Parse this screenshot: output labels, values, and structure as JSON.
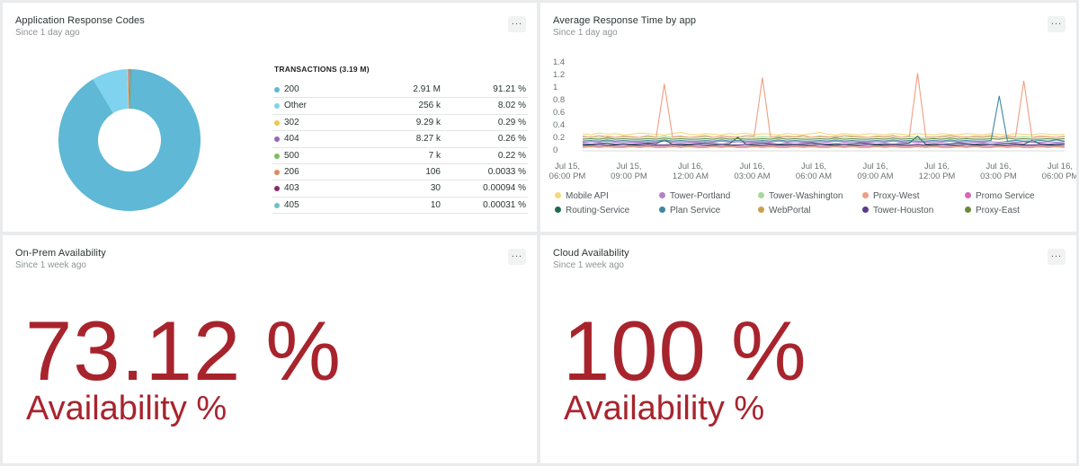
{
  "widgets": {
    "response_codes": {
      "title": "Application Response Codes",
      "subtitle": "Since 1 day ago",
      "menu": "...",
      "table_header": "TRANSACTIONS (3.19 M)",
      "rows": [
        {
          "label": "200",
          "count": "2.91 M",
          "pct": "91.21 %",
          "color": "#5eb8d6"
        },
        {
          "label": "Other",
          "count": "256 k",
          "pct": "8.02 %",
          "color": "#7fd3ee"
        },
        {
          "label": "302",
          "count": "9.29 k",
          "pct": "0.29 %",
          "color": "#f1c64a"
        },
        {
          "label": "404",
          "count": "8.27 k",
          "pct": "0.26 %",
          "color": "#9a66b8"
        },
        {
          "label": "500",
          "count": "7 k",
          "pct": "0.22 %",
          "color": "#7bbf5c"
        },
        {
          "label": "206",
          "count": "106",
          "pct": "0.0033 %",
          "color": "#e08a5c"
        },
        {
          "label": "403",
          "count": "30",
          "pct": "0.00094 %",
          "color": "#8a2a6a"
        },
        {
          "label": "405",
          "count": "10",
          "pct": "0.00031 %",
          "color": "#6cc2c2"
        }
      ]
    },
    "avg_response": {
      "title": "Average Response Time by app",
      "subtitle": "Since 1 day ago",
      "menu": "..."
    },
    "on_prem": {
      "title": "On-Prem Availability",
      "subtitle": "Since 1 week ago",
      "menu": "...",
      "value": "73.12 %",
      "label": "Availability %"
    },
    "cloud": {
      "title": "Cloud Availability",
      "subtitle": "Since 1 week ago",
      "menu": "...",
      "value": "100 %",
      "label": "Availability %"
    }
  },
  "chart_data": [
    {
      "type": "pie",
      "title": "Application Response Codes",
      "categories": [
        "200",
        "Other",
        "302",
        "404",
        "500",
        "206",
        "403",
        "405"
      ],
      "values": [
        91.21,
        8.02,
        0.29,
        0.26,
        0.22,
        0.0033,
        0.00094,
        0.00031
      ],
      "colors": [
        "#5eb8d6",
        "#7fd3ee",
        "#f1c64a",
        "#9a66b8",
        "#7bbf5c",
        "#e08a5c",
        "#8a2a6a",
        "#6cc2c2"
      ]
    },
    {
      "type": "line",
      "title": "Average Response Time by app",
      "ylim": [
        0,
        1.4
      ],
      "y_ticks": [
        "1.4",
        "1.2",
        "1",
        "0.8",
        "0.6",
        "0.4",
        "0.2",
        "0"
      ],
      "x_ticks": [
        {
          "line1": "Jul 15,",
          "line2": "06:00 PM"
        },
        {
          "line1": "Jul 15,",
          "line2": "09:00 PM"
        },
        {
          "line1": "Jul 16,",
          "line2": "12:00 AM"
        },
        {
          "line1": "Jul 16,",
          "line2": "03:00 AM"
        },
        {
          "line1": "Jul 16,",
          "line2": "06:00 AM"
        },
        {
          "line1": "Jul 16,",
          "line2": "09:00 AM"
        },
        {
          "line1": "Jul 16,",
          "line2": "12:00 PM"
        },
        {
          "line1": "Jul 16,",
          "line2": "03:00 PM"
        },
        {
          "line1": "Jul 16,",
          "line2": "06:00 PM"
        }
      ],
      "series": [
        {
          "name": "Mobile API",
          "color": "#f5d87a",
          "values": [
            0.26,
            0.24,
            0.27,
            0.25,
            0.26,
            0.24,
            0.25,
            0.27,
            0.26,
            0.25,
            0.24,
            0.26,
            0.28,
            0.25,
            0.24,
            0.26,
            0.25,
            0.24,
            0.26,
            0.25,
            0.27,
            0.24,
            0.26,
            0.25,
            0.24,
            0.26,
            0.25,
            0.24,
            0.26,
            0.28,
            0.25,
            0.24,
            0.26,
            0.25,
            0.24,
            0.26,
            0.25,
            0.24,
            0.26,
            0.25,
            0.24,
            0.26,
            0.25,
            0.24,
            0.26,
            0.25,
            0.24,
            0.26,
            0.25,
            0.24,
            0.26,
            0.25,
            0.24,
            0.26,
            0.25,
            0.24,
            0.26,
            0.25,
            0.24,
            0.25
          ]
        },
        {
          "name": "Tower-Portland",
          "color": "#b77fcf",
          "values": [
            0.12,
            0.13,
            0.12,
            0.14,
            0.12,
            0.13,
            0.12,
            0.12,
            0.13,
            0.12,
            0.14,
            0.12,
            0.13,
            0.12,
            0.12,
            0.13,
            0.12,
            0.14,
            0.12,
            0.13,
            0.12,
            0.12,
            0.13,
            0.12,
            0.14,
            0.12,
            0.13,
            0.12,
            0.12,
            0.13,
            0.12,
            0.14,
            0.12,
            0.13,
            0.12,
            0.12,
            0.13,
            0.12,
            0.14,
            0.12,
            0.13,
            0.12,
            0.12,
            0.13,
            0.12,
            0.14,
            0.12,
            0.13,
            0.12,
            0.12,
            0.13,
            0.12,
            0.14,
            0.12,
            0.13,
            0.12,
            0.12,
            0.13,
            0.12,
            0.13
          ]
        },
        {
          "name": "Tower-Washington",
          "color": "#a8d99a",
          "values": [
            0.2,
            0.21,
            0.2,
            0.22,
            0.2,
            0.21,
            0.2,
            0.2,
            0.21,
            0.2,
            0.22,
            0.2,
            0.21,
            0.2,
            0.2,
            0.21,
            0.2,
            0.22,
            0.2,
            0.21,
            0.2,
            0.2,
            0.21,
            0.2,
            0.22,
            0.2,
            0.21,
            0.2,
            0.2,
            0.21,
            0.2,
            0.22,
            0.2,
            0.21,
            0.2,
            0.2,
            0.21,
            0.2,
            0.22,
            0.2,
            0.21,
            0.2,
            0.2,
            0.21,
            0.2,
            0.22,
            0.2,
            0.21,
            0.2,
            0.2,
            0.21,
            0.2,
            0.22,
            0.2,
            0.21,
            0.2,
            0.2,
            0.21,
            0.2,
            0.21
          ]
        },
        {
          "name": "Proxy-West",
          "color": "#ef9e82",
          "values": [
            0.22,
            0.2,
            0.23,
            0.21,
            0.2,
            0.22,
            0.21,
            0.2,
            0.23,
            0.2,
            1.05,
            0.21,
            0.22,
            0.2,
            0.21,
            0.23,
            0.2,
            0.22,
            0.21,
            0.2,
            0.23,
            0.22,
            1.15,
            0.21,
            0.2,
            0.22,
            0.21,
            0.23,
            0.2,
            0.22,
            0.21,
            0.2,
            0.23,
            0.22,
            0.21,
            0.2,
            0.22,
            0.21,
            0.23,
            0.2,
            0.22,
            1.22,
            0.21,
            0.2,
            0.22,
            0.23,
            0.21,
            0.2,
            0.22,
            0.21,
            0.23,
            0.2,
            0.22,
            0.21,
            1.1,
            0.2,
            0.22,
            0.21,
            0.2,
            0.22
          ]
        },
        {
          "name": "Promo Service",
          "color": "#d866b8",
          "values": [
            0.06,
            0.07,
            0.06,
            0.07,
            0.06,
            0.06,
            0.07,
            0.06,
            0.07,
            0.06,
            0.06,
            0.07,
            0.06,
            0.07,
            0.06,
            0.06,
            0.07,
            0.06,
            0.07,
            0.06,
            0.06,
            0.07,
            0.06,
            0.07,
            0.06,
            0.06,
            0.07,
            0.06,
            0.07,
            0.06,
            0.06,
            0.07,
            0.06,
            0.07,
            0.06,
            0.06,
            0.07,
            0.06,
            0.07,
            0.06,
            0.06,
            0.07,
            0.06,
            0.07,
            0.06,
            0.06,
            0.07,
            0.06,
            0.07,
            0.06,
            0.06,
            0.07,
            0.06,
            0.07,
            0.06,
            0.06,
            0.07,
            0.06,
            0.07,
            0.06
          ]
        },
        {
          "name": "Routing-Service",
          "color": "#1f6b55",
          "values": [
            0.1,
            0.09,
            0.1,
            0.11,
            0.09,
            0.1,
            0.09,
            0.1,
            0.11,
            0.1,
            0.16,
            0.09,
            0.1,
            0.09,
            0.1,
            0.11,
            0.1,
            0.09,
            0.1,
            0.2,
            0.09,
            0.1,
            0.11,
            0.1,
            0.09,
            0.1,
            0.09,
            0.1,
            0.11,
            0.1,
            0.09,
            0.1,
            0.09,
            0.1,
            0.11,
            0.1,
            0.09,
            0.1,
            0.09,
            0.1,
            0.11,
            0.22,
            0.09,
            0.1,
            0.09,
            0.1,
            0.11,
            0.1,
            0.09,
            0.1,
            0.09,
            0.1,
            0.11,
            0.1,
            0.09,
            0.15,
            0.1,
            0.09,
            0.1,
            0.1
          ]
        },
        {
          "name": "Plan Service",
          "color": "#3e86a0",
          "values": [
            0.14,
            0.15,
            0.14,
            0.16,
            0.14,
            0.15,
            0.14,
            0.14,
            0.15,
            0.14,
            0.16,
            0.14,
            0.15,
            0.14,
            0.14,
            0.15,
            0.14,
            0.16,
            0.14,
            0.15,
            0.14,
            0.14,
            0.15,
            0.14,
            0.16,
            0.14,
            0.15,
            0.14,
            0.14,
            0.15,
            0.14,
            0.16,
            0.14,
            0.15,
            0.14,
            0.14,
            0.15,
            0.14,
            0.16,
            0.14,
            0.15,
            0.14,
            0.14,
            0.15,
            0.14,
            0.16,
            0.14,
            0.15,
            0.14,
            0.14,
            0.15,
            0.86,
            0.14,
            0.15,
            0.14,
            0.14,
            0.15,
            0.14,
            0.16,
            0.14
          ]
        },
        {
          "name": "WebPortal",
          "color": "#c9a04a",
          "values": [
            0.04,
            0.05,
            0.04,
            0.05,
            0.04,
            0.04,
            0.05,
            0.04,
            0.05,
            0.04,
            0.04,
            0.05,
            0.04,
            0.05,
            0.04,
            0.04,
            0.05,
            0.04,
            0.05,
            0.04,
            0.04,
            0.05,
            0.04,
            0.05,
            0.04,
            0.04,
            0.05,
            0.04,
            0.05,
            0.04,
            0.04,
            0.05,
            0.04,
            0.05,
            0.04,
            0.04,
            0.05,
            0.04,
            0.05,
            0.04,
            0.04,
            0.05,
            0.04,
            0.05,
            0.04,
            0.04,
            0.05,
            0.04,
            0.05,
            0.04,
            0.04,
            0.05,
            0.04,
            0.05,
            0.04,
            0.04,
            0.05,
            0.04,
            0.05,
            0.04
          ]
        },
        {
          "name": "Tower-Houston",
          "color": "#5a3a8a",
          "values": [
            0.08,
            0.08,
            0.09,
            0.08,
            0.08,
            0.09,
            0.08,
            0.08,
            0.09,
            0.08,
            0.08,
            0.09,
            0.08,
            0.08,
            0.09,
            0.08,
            0.08,
            0.09,
            0.08,
            0.08,
            0.09,
            0.08,
            0.08,
            0.09,
            0.08,
            0.08,
            0.09,
            0.08,
            0.08,
            0.09,
            0.08,
            0.08,
            0.09,
            0.08,
            0.08,
            0.09,
            0.08,
            0.08,
            0.09,
            0.08,
            0.08,
            0.09,
            0.08,
            0.08,
            0.09,
            0.08,
            0.08,
            0.09,
            0.08,
            0.08,
            0.09,
            0.08,
            0.08,
            0.09,
            0.08,
            0.08,
            0.09,
            0.08,
            0.08,
            0.09
          ]
        },
        {
          "name": "Proxy-East",
          "color": "#6a8a3a",
          "values": [
            0.17,
            0.18,
            0.17,
            0.19,
            0.17,
            0.18,
            0.17,
            0.17,
            0.18,
            0.17,
            0.19,
            0.17,
            0.18,
            0.17,
            0.17,
            0.18,
            0.17,
            0.19,
            0.17,
            0.18,
            0.17,
            0.17,
            0.18,
            0.17,
            0.19,
            0.17,
            0.18,
            0.17,
            0.17,
            0.18,
            0.17,
            0.19,
            0.17,
            0.18,
            0.17,
            0.17,
            0.18,
            0.17,
            0.19,
            0.17,
            0.18,
            0.17,
            0.17,
            0.18,
            0.17,
            0.19,
            0.17,
            0.18,
            0.17,
            0.17,
            0.18,
            0.17,
            0.19,
            0.17,
            0.18,
            0.17,
            0.17,
            0.18,
            0.17,
            0.18
          ]
        }
      ]
    }
  ]
}
